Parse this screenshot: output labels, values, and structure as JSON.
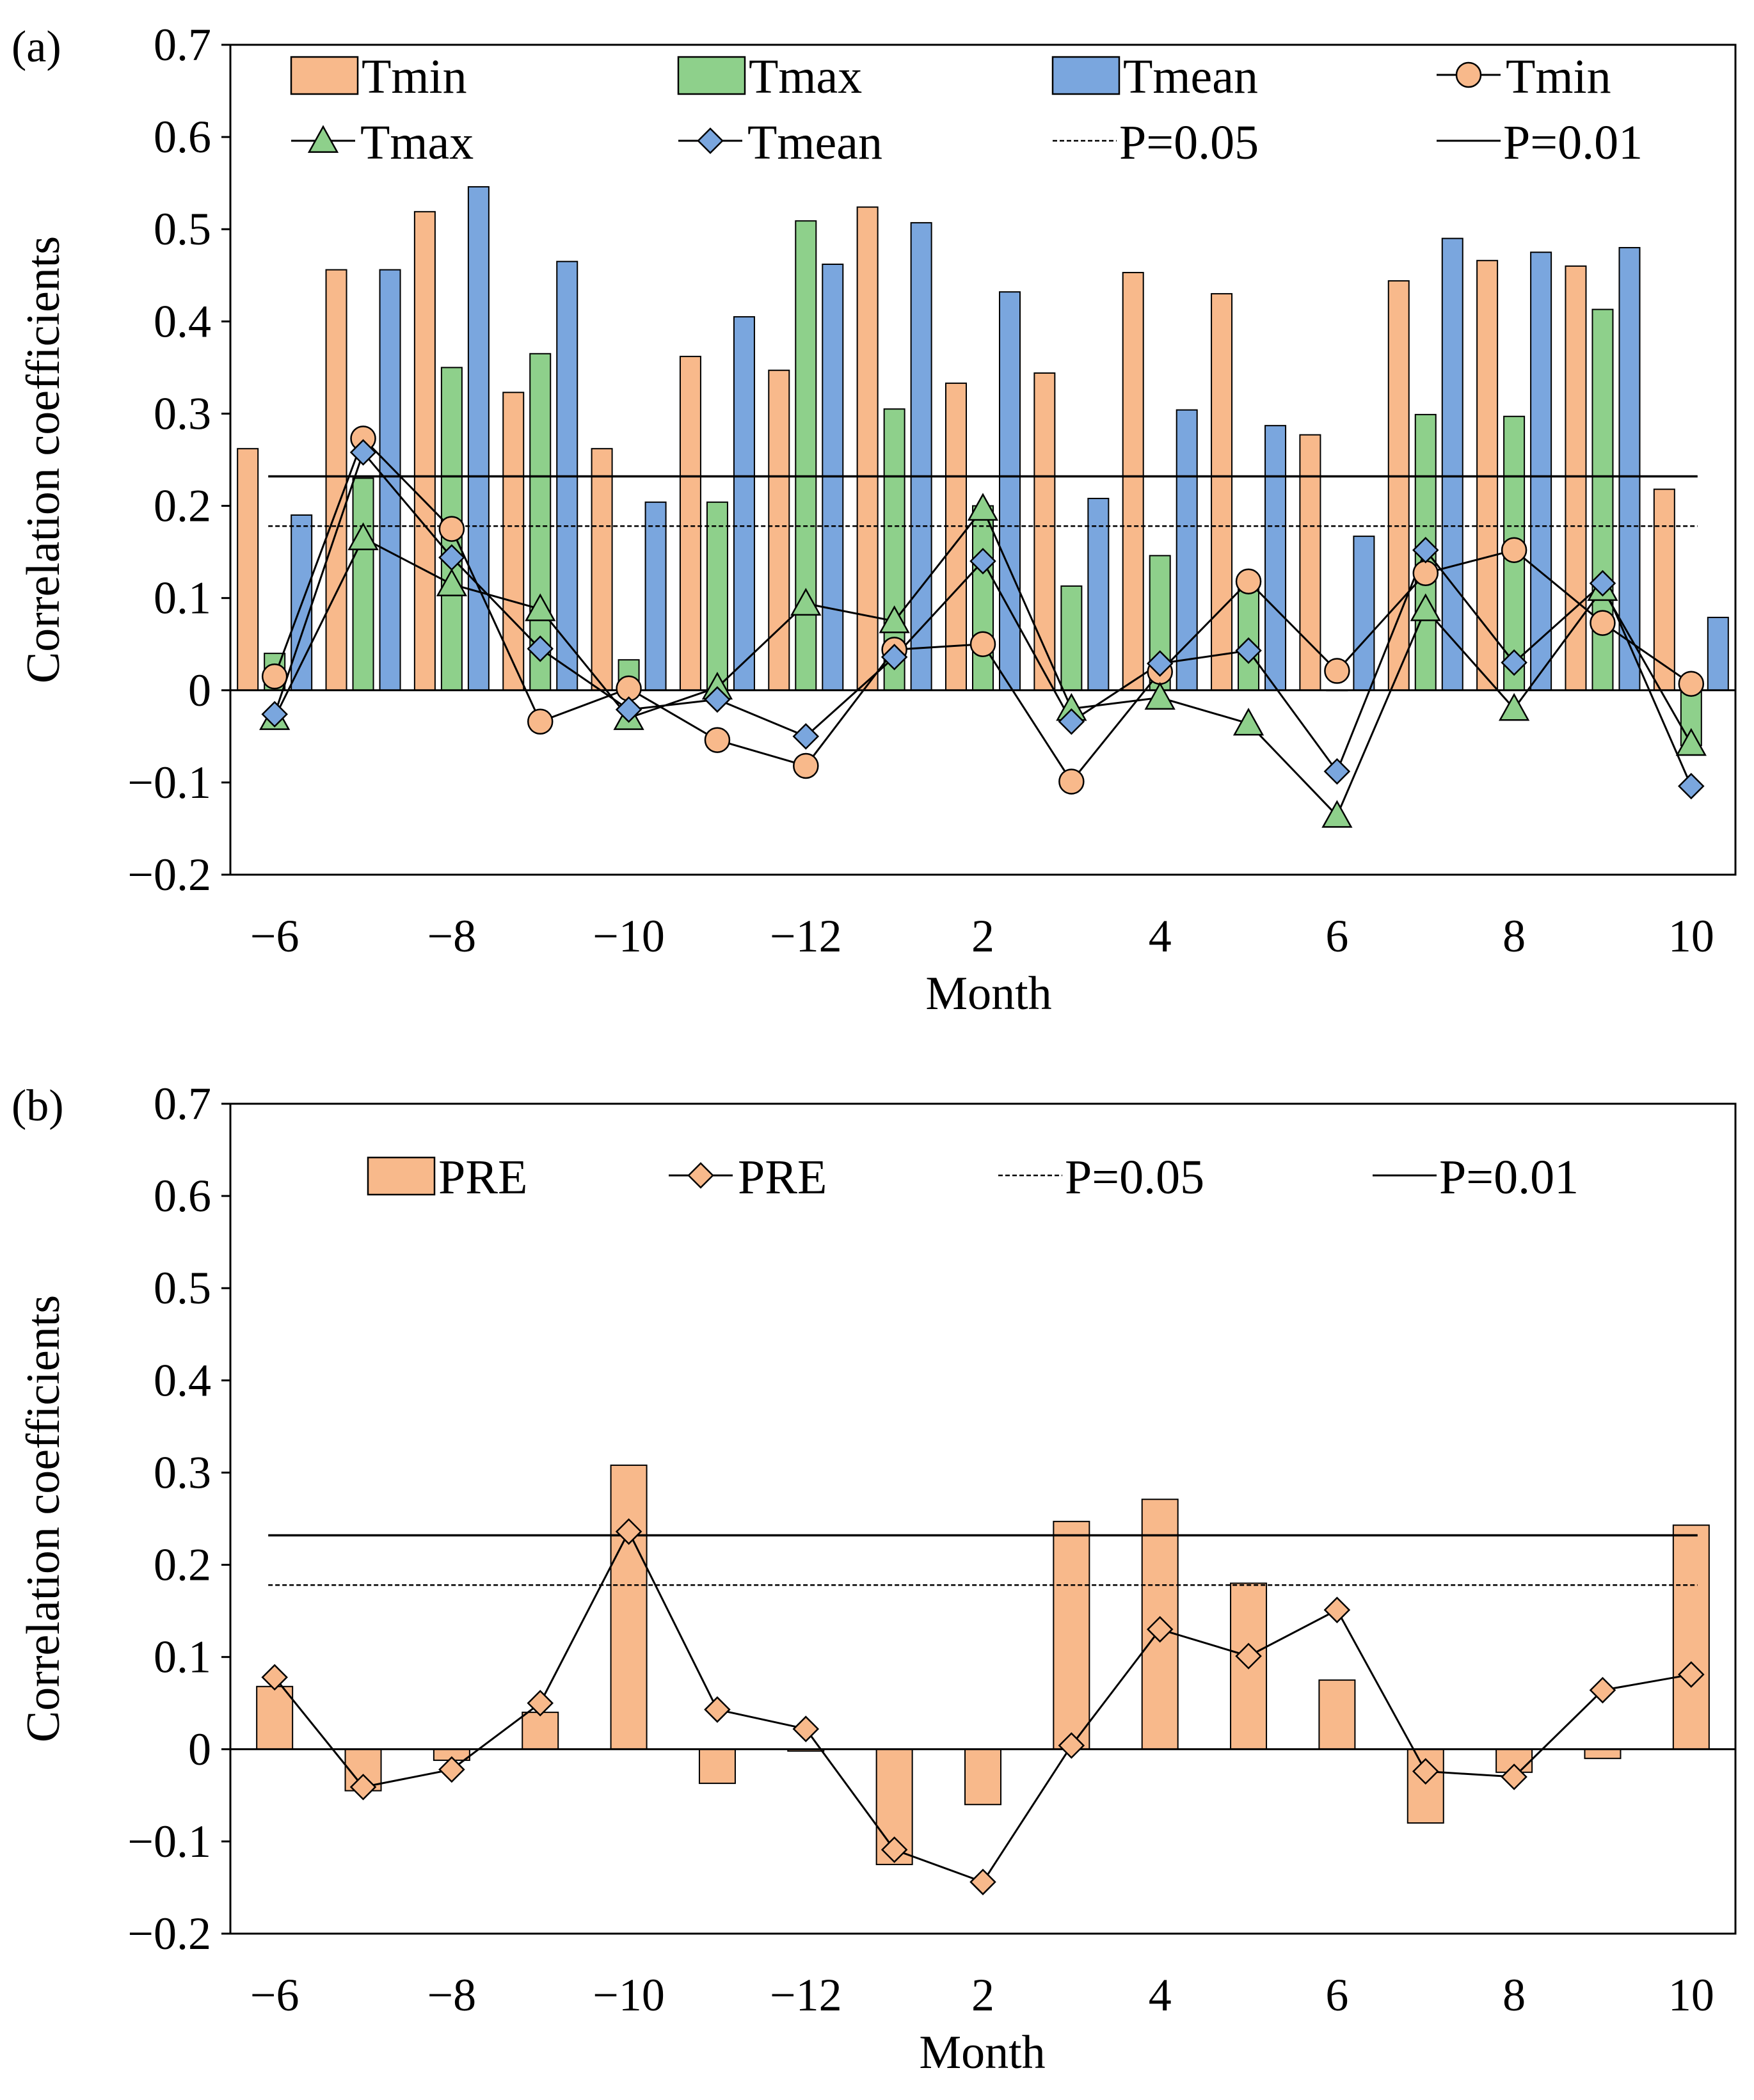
{
  "chart_data": [
    {
      "panel_label": "(a)",
      "type": "bar+line",
      "xlabel": "Month",
      "ylabel": "Correlation coefficients",
      "ylim": [
        -0.2,
        0.7
      ],
      "yticks": [
        "0.7",
        "0.6",
        "0.5",
        "0.4",
        "0.3",
        "0.2",
        "0.1",
        "0",
        "−0.1",
        "−0.2"
      ],
      "ytick_values": [
        0.7,
        0.6,
        0.5,
        0.4,
        0.3,
        0.2,
        0.1,
        0,
        -0.1,
        -0.2
      ],
      "categories": [
        "−6",
        "−7",
        "−8",
        "−9",
        "−10",
        "−11",
        "−12",
        "1",
        "2",
        "3",
        "4",
        "5",
        "6",
        "7",
        "8",
        "9",
        "10"
      ],
      "xtick_labels": [
        "−6",
        "",
        "−8",
        "",
        "−10",
        "",
        "−12",
        "",
        "2",
        "",
        "4",
        "",
        "6",
        "",
        "8",
        "",
        "10"
      ],
      "bar_series": [
        {
          "name": "Tmin",
          "color": "#F8B98B",
          "values": [
            0.262,
            0.456,
            0.519,
            0.323,
            0.262,
            0.362,
            0.347,
            0.524,
            0.333,
            0.344,
            0.453,
            0.43,
            0.277,
            0.444,
            0.466,
            0.46,
            0.218
          ]
        },
        {
          "name": "Tmax",
          "color": "#8ED08B",
          "values": [
            0.04,
            0.23,
            0.35,
            0.365,
            0.033,
            0.204,
            0.509,
            0.305,
            0.2,
            0.113,
            0.146,
            0.11,
            0.0,
            0.299,
            0.297,
            0.413,
            -0.06
          ]
        },
        {
          "name": "Tmean",
          "color": "#7AA6DE",
          "values": [
            0.19,
            0.456,
            0.546,
            0.465,
            0.204,
            0.405,
            0.462,
            0.507,
            0.432,
            0.208,
            0.304,
            0.287,
            0.167,
            0.49,
            0.475,
            0.48,
            0.079
          ]
        }
      ],
      "line_series": [
        {
          "name": "Tmin",
          "marker": "circle",
          "color": "#F8B98B",
          "values": [
            0.015,
            0.273,
            0.175,
            -0.034,
            0.002,
            -0.054,
            -0.082,
            0.044,
            0.05,
            -0.099,
            0.02,
            0.118,
            0.021,
            0.127,
            0.152,
            0.073,
            0.007
          ]
        },
        {
          "name": "Tmax",
          "marker": "triangle",
          "color": "#8ED08B",
          "values": [
            -0.03,
            0.165,
            0.115,
            0.088,
            -0.03,
            0.003,
            0.094,
            0.075,
            0.197,
            -0.02,
            -0.008,
            -0.036,
            -0.136,
            0.088,
            -0.02,
            0.11,
            -0.058
          ]
        },
        {
          "name": "Tmean",
          "marker": "diamond",
          "color": "#7AA6DE",
          "values": [
            -0.026,
            0.258,
            0.144,
            0.045,
            -0.021,
            -0.01,
            -0.05,
            0.036,
            0.14,
            -0.034,
            0.029,
            0.043,
            -0.088,
            0.152,
            0.03,
            0.116,
            -0.104
          ]
        }
      ],
      "reference_lines": [
        {
          "name": "P=0.05",
          "style": "dashed",
          "value": 0.178
        },
        {
          "name": "P=0.01",
          "style": "solid",
          "value": 0.232
        }
      ],
      "legend": {
        "placement": "top",
        "rows": [
          [
            {
              "label": "Tmin",
              "kind": "bar",
              "series": "Tmin"
            },
            {
              "label": "Tmax",
              "kind": "bar",
              "series": "Tmax"
            },
            {
              "label": "Tmean",
              "kind": "bar",
              "series": "Tmean"
            },
            {
              "label": "Tmin",
              "kind": "line",
              "series": "Tmin"
            }
          ],
          [
            {
              "label": "Tmax",
              "kind": "line",
              "series": "Tmax"
            },
            {
              "label": "Tmean",
              "kind": "line",
              "series": "Tmean"
            },
            {
              "label": "P=0.05",
              "kind": "ref",
              "series": "P=0.05"
            },
            {
              "label": "P=0.01",
              "kind": "ref",
              "series": "P=0.01"
            }
          ]
        ]
      }
    },
    {
      "panel_label": "(b)",
      "type": "bar+line",
      "xlabel": "Month",
      "ylabel": "Correlation coefficients",
      "ylim": [
        -0.2,
        0.7
      ],
      "yticks": [
        "0.7",
        "0.6",
        "0.5",
        "0.4",
        "0.3",
        "0.2",
        "0.1",
        "0",
        "−0.1",
        "−0.2"
      ],
      "ytick_values": [
        0.7,
        0.6,
        0.5,
        0.4,
        0.3,
        0.2,
        0.1,
        0,
        -0.1,
        -0.2
      ],
      "categories": [
        "−6",
        "−7",
        "−8",
        "−9",
        "−10",
        "−11",
        "−12",
        "1",
        "2",
        "3",
        "4",
        "5",
        "6",
        "7",
        "8",
        "9",
        "10"
      ],
      "xtick_labels": [
        "−6",
        "",
        "−8",
        "",
        "−10",
        "",
        "−12",
        "",
        "2",
        "",
        "4",
        "",
        "6",
        "",
        "8",
        "",
        "10"
      ],
      "bar_series": [
        {
          "name": "PRE",
          "color": "#F8B98B",
          "values": [
            0.068,
            -0.045,
            -0.012,
            0.04,
            0.308,
            -0.037,
            -0.002,
            -0.125,
            -0.06,
            0.247,
            0.271,
            0.18,
            0.075,
            -0.08,
            -0.025,
            -0.01,
            0.243
          ]
        }
      ],
      "line_series": [
        {
          "name": "PRE",
          "marker": "diamond",
          "color": "#F8B98B",
          "values": [
            0.078,
            -0.041,
            -0.022,
            0.05,
            0.236,
            0.043,
            0.022,
            -0.109,
            -0.144,
            0.004,
            0.13,
            0.101,
            0.151,
            -0.024,
            -0.03,
            0.064,
            0.081
          ]
        }
      ],
      "reference_lines": [
        {
          "name": "P=0.05",
          "style": "dashed",
          "value": 0.178
        },
        {
          "name": "P=0.01",
          "style": "solid",
          "value": 0.232
        }
      ],
      "legend": {
        "placement": "top",
        "rows": [
          [
            {
              "label": "PRE",
              "kind": "bar",
              "series": "PRE"
            },
            {
              "label": "PRE",
              "kind": "line",
              "series": "PRE"
            },
            {
              "label": "P=0.05",
              "kind": "ref",
              "series": "P=0.05"
            },
            {
              "label": "P=0.01",
              "kind": "ref",
              "series": "P=0.01"
            }
          ]
        ]
      }
    }
  ]
}
